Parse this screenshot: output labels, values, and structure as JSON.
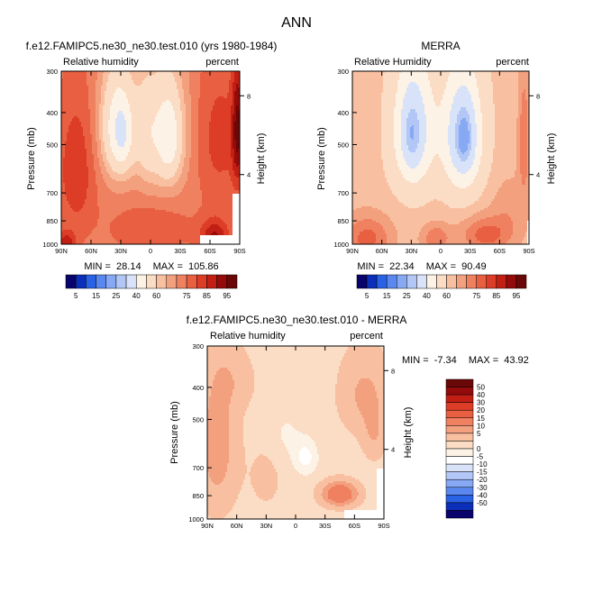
{
  "page_title": "ANN",
  "colors": {
    "rh_scale": [
      "#08046b",
      "#0b2fb8",
      "#2a62e6",
      "#5a88ee",
      "#87a9f3",
      "#b2c7f6",
      "#d8e3f9",
      "#fdf2e6",
      "#fbdcc4",
      "#f8c0a0",
      "#f3a07f",
      "#ef8060",
      "#e85f41",
      "#dd3d27",
      "#c21f14",
      "#950a0a",
      "#6a0707"
    ],
    "diff_scale": [
      "#08046b",
      "#0b2fb8",
      "#2a62e6",
      "#5a88ee",
      "#87a9f3",
      "#b2c7f6",
      "#d8e3f9",
      "#ffffff",
      "#fdf2e6",
      "#fbdcc4",
      "#f8c0a0",
      "#f3a07f",
      "#ef8060",
      "#e85f41",
      "#dd3d27",
      "#c21f14",
      "#950a0a",
      "#6a0707"
    ]
  },
  "chart_data": [
    {
      "type": "heatmap",
      "title": "f.e12.FAMIPC5.ne30_ne30.test.010 (yrs 1980-1984)",
      "left_label": "Relative humidity",
      "right_label": "percent",
      "xlabel": "",
      "ylabel": "Pressure (mb)",
      "y2label": "Height (km)",
      "x_ticks": [
        "90N",
        "60N",
        "30N",
        "0",
        "30S",
        "60S",
        "90S"
      ],
      "y_ticks": [
        "300",
        "400",
        "500",
        "700",
        "850",
        "1000"
      ],
      "y2_ticks": [
        "8",
        "4"
      ],
      "stats": {
        "min_label": "MIN =",
        "min": "28.14",
        "max_label": "MAX =",
        "max": "105.86"
      },
      "colorbar_labels": [
        "5",
        "15",
        "25",
        "40",
        "60",
        "75",
        "85",
        "95"
      ],
      "levels": [
        5,
        10,
        15,
        20,
        25,
        30,
        40,
        50,
        60,
        65,
        70,
        75,
        80,
        85,
        90,
        95
      ],
      "y_range": [
        300,
        1000
      ],
      "x_range": [
        90,
        -90
      ],
      "fields": {
        "base": 72,
        "blobs": [
          [
            32,
            440,
            18,
            170,
            -30
          ],
          [
            -15,
            460,
            20,
            190,
            -25
          ],
          [
            28,
            480,
            9,
            110,
            -8
          ],
          [
            -20,
            490,
            9,
            120,
            -8
          ],
          [
            -70,
            480,
            25,
            260,
            10
          ],
          [
            75,
            600,
            20,
            300,
            12
          ],
          [
            -65,
            950,
            15,
            120,
            18
          ],
          [
            85,
            990,
            10,
            80,
            15
          ],
          [
            5,
            450,
            10,
            200,
            -8
          ],
          [
            0,
            900,
            40,
            150,
            8
          ],
          [
            -88,
            450,
            6,
            200,
            20
          ]
        ]
      },
      "mask": [
        {
          "x0": -50,
          "x1": -90,
          "p0": 945,
          "p1": 1000
        },
        {
          "x0": -82,
          "x1": -90,
          "p0": 700,
          "p1": 1000
        }
      ]
    },
    {
      "type": "heatmap",
      "title": "MERRA",
      "left_label": "Relative Humidity",
      "right_label": "percent",
      "xlabel": "",
      "ylabel": "Pressure (mb)",
      "y2label": "Height (km)",
      "x_ticks": [
        "90N",
        "60N",
        "30N",
        "0",
        "30S",
        "60S",
        "90S"
      ],
      "y_ticks": [
        "300",
        "400",
        "500",
        "700",
        "850",
        "1000"
      ],
      "y2_ticks": [
        "8",
        "4"
      ],
      "stats": {
        "min_label": "MIN =",
        "min": "22.34",
        "max_label": "MAX =",
        "max": "90.49"
      },
      "colorbar_labels": [
        "5",
        "15",
        "25",
        "40",
        "60",
        "75",
        "85",
        "95"
      ],
      "levels": [
        5,
        10,
        15,
        20,
        25,
        30,
        40,
        50,
        60,
        65,
        70,
        75,
        80,
        85,
        90,
        95
      ],
      "y_range": [
        300,
        1000
      ],
      "x_range": [
        90,
        -90
      ],
      "fields": {
        "base": 62,
        "blobs": [
          [
            28,
            450,
            20,
            200,
            -32
          ],
          [
            -22,
            470,
            20,
            200,
            -34
          ],
          [
            30,
            480,
            9,
            110,
            -6
          ],
          [
            -25,
            480,
            9,
            110,
            -8
          ],
          [
            75,
            960,
            25,
            150,
            15
          ],
          [
            -45,
            940,
            25,
            120,
            15
          ],
          [
            5,
            960,
            15,
            100,
            12
          ],
          [
            -85,
            480,
            6,
            220,
            12
          ],
          [
            -70,
            800,
            20,
            200,
            6
          ]
        ]
      },
      "mask": [
        {
          "x0": -88,
          "x1": -90,
          "p0": 850,
          "p1": 1000
        }
      ]
    },
    {
      "type": "heatmap",
      "title": "f.e12.FAMIPC5.ne30_ne30.test.010 - MERRA",
      "left_label": "Relative humidity",
      "right_label": "percent",
      "xlabel": "",
      "ylabel": "Pressure (mb)",
      "y2label": "Height (km)",
      "x_ticks": [
        "90N",
        "60N",
        "30N",
        "0",
        "30S",
        "60S",
        "90S"
      ],
      "y_ticks": [
        "300",
        "400",
        "500",
        "700",
        "850",
        "1000"
      ],
      "y2_ticks": [
        "8",
        "4"
      ],
      "stats": {
        "min_label": "MIN =",
        "min": "-7.34",
        "max_label": "MAX =",
        "max": "43.92"
      },
      "colorbar_labels": [
        "50",
        "40",
        "30",
        "20",
        "15",
        "10",
        "5",
        "0",
        "-5",
        "-10",
        "-15",
        "-20",
        "-30",
        "-40",
        "-50"
      ],
      "levels": [
        -50,
        -40,
        -30,
        -20,
        -15,
        -10,
        -5,
        0,
        5,
        10,
        15,
        20,
        30,
        40,
        50
      ],
      "y_range": [
        300,
        1000
      ],
      "x_range": [
        90,
        -90
      ],
      "fields": {
        "base": 8,
        "blobs": [
          [
            80,
            600,
            20,
            320,
            10
          ],
          [
            -45,
            840,
            18,
            70,
            20
          ],
          [
            -70,
            420,
            25,
            120,
            8
          ],
          [
            -10,
            650,
            12,
            80,
            -10
          ],
          [
            10,
            560,
            15,
            100,
            -4
          ],
          [
            -80,
            560,
            12,
            100,
            6
          ],
          [
            30,
            750,
            20,
            200,
            3
          ],
          [
            60,
            380,
            20,
            80,
            4
          ]
        ]
      },
      "mask": [
        {
          "x0": -50,
          "x1": -90,
          "p0": 945,
          "p1": 1000
        },
        {
          "x0": -82,
          "x1": -90,
          "p0": 700,
          "p1": 1000
        }
      ]
    }
  ]
}
